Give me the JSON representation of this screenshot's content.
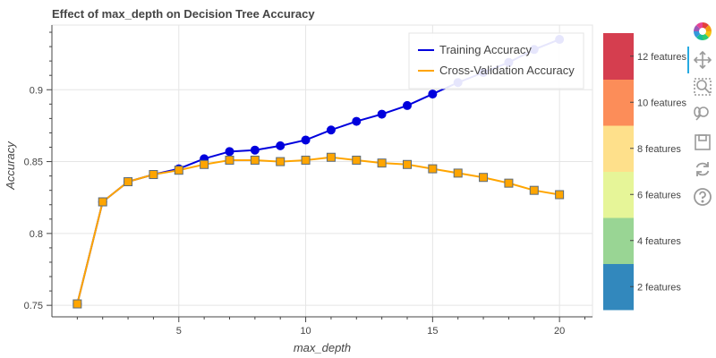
{
  "chart_data": {
    "type": "line",
    "title": "Effect of max_depth on Decision Tree Accuracy",
    "xlabel": "max_depth",
    "ylabel": "Accuracy",
    "xlim": [
      0,
      21.3
    ],
    "ylim": [
      0.742,
      0.945
    ],
    "xticks": [
      5,
      10,
      15,
      20
    ],
    "yticks": [
      0.75,
      0.8,
      0.85,
      0.9
    ],
    "grid": true,
    "legend_position": "top-right",
    "x": [
      1,
      2,
      3,
      4,
      5,
      6,
      7,
      8,
      9,
      10,
      11,
      12,
      13,
      14,
      15,
      16,
      17,
      18,
      19,
      20
    ],
    "series": [
      {
        "name": "Training Accuracy",
        "color": "#0000dd",
        "marker": "circle",
        "values": [
          0.751,
          0.822,
          0.836,
          0.841,
          0.845,
          0.852,
          0.857,
          0.858,
          0.861,
          0.865,
          0.872,
          0.878,
          0.883,
          0.889,
          0.897,
          0.905,
          0.912,
          0.919,
          0.928,
          0.935
        ]
      },
      {
        "name": "Cross-Validation Accuracy",
        "color": "#ffa500",
        "marker": "square",
        "values": [
          0.751,
          0.822,
          0.836,
          0.841,
          0.844,
          0.848,
          0.851,
          0.851,
          0.85,
          0.851,
          0.853,
          0.851,
          0.849,
          0.848,
          0.845,
          0.842,
          0.839,
          0.835,
          0.83,
          0.827
        ]
      }
    ],
    "colorbar": {
      "labels": [
        "2 features",
        "4 features",
        "6 features",
        "8 features",
        "10 features",
        "12 features"
      ],
      "colors": [
        "#3288bd",
        "#99d594",
        "#e6f598",
        "#fee08b",
        "#fc8d59",
        "#d53e4f"
      ]
    }
  },
  "toolbar": {
    "tools": [
      "bokeh-logo-icon",
      "pan-icon",
      "box-zoom-icon",
      "wheel-zoom-icon",
      "save-icon",
      "reset-icon",
      "help-icon"
    ]
  }
}
